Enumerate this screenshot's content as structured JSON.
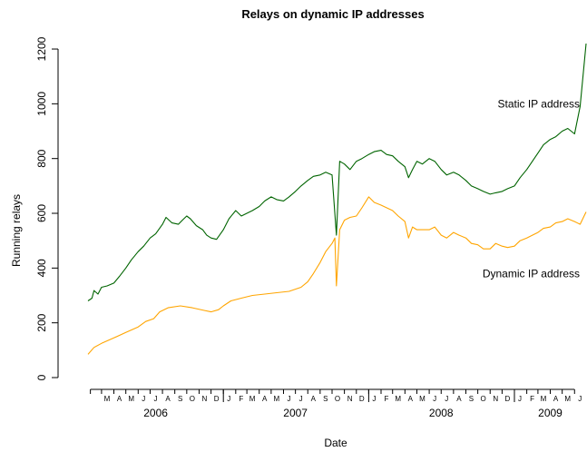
{
  "chart_data": {
    "type": "line",
    "title": "Relays on dynamic IP addresses",
    "xlabel": "Date",
    "ylabel": "Running relays",
    "y_ticks": [
      0,
      200,
      400,
      600,
      800,
      1000,
      1200
    ],
    "ylim": [
      0,
      1220
    ],
    "xlim": [
      "2006-01-26",
      "2009-06-30"
    ],
    "grid": false,
    "legend": "none",
    "month_ticks": [
      {
        "date": "2006-02-01",
        "label": ""
      },
      {
        "date": "2006-03-01",
        "label": "M"
      },
      {
        "date": "2006-04-01",
        "label": "A"
      },
      {
        "date": "2006-05-01",
        "label": "M"
      },
      {
        "date": "2006-06-01",
        "label": "J"
      },
      {
        "date": "2006-07-01",
        "label": "J"
      },
      {
        "date": "2006-08-01",
        "label": "A"
      },
      {
        "date": "2006-09-01",
        "label": "S"
      },
      {
        "date": "2006-10-01",
        "label": "O"
      },
      {
        "date": "2006-11-01",
        "label": "N"
      },
      {
        "date": "2006-12-01",
        "label": "D"
      },
      {
        "date": "2007-01-01",
        "label": "J"
      },
      {
        "date": "2007-02-01",
        "label": "F"
      },
      {
        "date": "2007-03-01",
        "label": "M"
      },
      {
        "date": "2007-04-01",
        "label": "A"
      },
      {
        "date": "2007-05-01",
        "label": "M"
      },
      {
        "date": "2007-06-01",
        "label": "J"
      },
      {
        "date": "2007-07-01",
        "label": "J"
      },
      {
        "date": "2007-08-01",
        "label": "A"
      },
      {
        "date": "2007-09-01",
        "label": "S"
      },
      {
        "date": "2007-10-01",
        "label": "O"
      },
      {
        "date": "2007-11-01",
        "label": "N"
      },
      {
        "date": "2007-12-01",
        "label": "D"
      },
      {
        "date": "2008-01-01",
        "label": "J"
      },
      {
        "date": "2008-02-01",
        "label": "F"
      },
      {
        "date": "2008-03-01",
        "label": "M"
      },
      {
        "date": "2008-04-01",
        "label": "A"
      },
      {
        "date": "2008-05-01",
        "label": "M"
      },
      {
        "date": "2008-06-01",
        "label": "J"
      },
      {
        "date": "2008-07-01",
        "label": "J"
      },
      {
        "date": "2008-08-01",
        "label": "A"
      },
      {
        "date": "2008-09-01",
        "label": "S"
      },
      {
        "date": "2008-10-01",
        "label": "O"
      },
      {
        "date": "2008-11-01",
        "label": "N"
      },
      {
        "date": "2008-12-01",
        "label": "D"
      },
      {
        "date": "2009-01-01",
        "label": "J"
      },
      {
        "date": "2009-02-01",
        "label": "F"
      },
      {
        "date": "2009-03-01",
        "label": "M"
      },
      {
        "date": "2009-04-01",
        "label": "A"
      },
      {
        "date": "2009-05-01",
        "label": "M"
      },
      {
        "date": "2009-06-01",
        "label": "J"
      }
    ],
    "year_ticks": [
      "2007-01-01",
      "2008-01-01",
      "2009-01-01"
    ],
    "year_labels": [
      {
        "label": "2006",
        "date": "2006-07-15"
      },
      {
        "label": "2007",
        "date": "2007-07-01"
      },
      {
        "label": "2008",
        "date": "2008-07-01"
      },
      {
        "label": "2009",
        "date": "2009-04-01"
      }
    ],
    "series": [
      {
        "name": "Static IP address",
        "color": "#006400",
        "points": [
          [
            "2006-01-26",
            280
          ],
          [
            "2006-02-05",
            290
          ],
          [
            "2006-02-10",
            318
          ],
          [
            "2006-02-20",
            305
          ],
          [
            "2006-03-01",
            330
          ],
          [
            "2006-03-15",
            335
          ],
          [
            "2006-04-01",
            345
          ],
          [
            "2006-04-15",
            370
          ],
          [
            "2006-05-01",
            400
          ],
          [
            "2006-05-15",
            430
          ],
          [
            "2006-06-01",
            460
          ],
          [
            "2006-06-15",
            480
          ],
          [
            "2006-07-01",
            510
          ],
          [
            "2006-07-15",
            525
          ],
          [
            "2006-08-01",
            560
          ],
          [
            "2006-08-10",
            585
          ],
          [
            "2006-08-25",
            565
          ],
          [
            "2006-09-10",
            560
          ],
          [
            "2006-09-20",
            575
          ],
          [
            "2006-10-01",
            590
          ],
          [
            "2006-10-10",
            580
          ],
          [
            "2006-10-25",
            555
          ],
          [
            "2006-11-10",
            540
          ],
          [
            "2006-11-20",
            520
          ],
          [
            "2006-12-01",
            510
          ],
          [
            "2006-12-15",
            505
          ],
          [
            "2007-01-01",
            540
          ],
          [
            "2007-01-15",
            580
          ],
          [
            "2007-02-01",
            610
          ],
          [
            "2007-02-15",
            590
          ],
          [
            "2007-03-01",
            600
          ],
          [
            "2007-03-15",
            610
          ],
          [
            "2007-04-01",
            625
          ],
          [
            "2007-04-15",
            645
          ],
          [
            "2007-05-01",
            660
          ],
          [
            "2007-05-15",
            650
          ],
          [
            "2007-06-01",
            645
          ],
          [
            "2007-06-15",
            660
          ],
          [
            "2007-07-01",
            680
          ],
          [
            "2007-07-15",
            700
          ],
          [
            "2007-08-01",
            720
          ],
          [
            "2007-08-15",
            735
          ],
          [
            "2007-09-01",
            740
          ],
          [
            "2007-09-15",
            750
          ],
          [
            "2007-10-01",
            740
          ],
          [
            "2007-10-12",
            520
          ],
          [
            "2007-10-20",
            790
          ],
          [
            "2007-11-01",
            780
          ],
          [
            "2007-11-15",
            760
          ],
          [
            "2007-12-01",
            790
          ],
          [
            "2007-12-15",
            800
          ],
          [
            "2008-01-01",
            815
          ],
          [
            "2008-01-15",
            825
          ],
          [
            "2008-02-01",
            830
          ],
          [
            "2008-02-15",
            815
          ],
          [
            "2008-03-01",
            810
          ],
          [
            "2008-03-15",
            790
          ],
          [
            "2008-04-01",
            770
          ],
          [
            "2008-04-10",
            730
          ],
          [
            "2008-04-20",
            760
          ],
          [
            "2008-05-01",
            790
          ],
          [
            "2008-05-15",
            780
          ],
          [
            "2008-06-01",
            800
          ],
          [
            "2008-06-15",
            790
          ],
          [
            "2008-07-01",
            760
          ],
          [
            "2008-07-15",
            740
          ],
          [
            "2008-08-01",
            750
          ],
          [
            "2008-08-15",
            740
          ],
          [
            "2008-09-01",
            720
          ],
          [
            "2008-09-15",
            700
          ],
          [
            "2008-10-01",
            690
          ],
          [
            "2008-10-15",
            680
          ],
          [
            "2008-11-01",
            670
          ],
          [
            "2008-11-15",
            675
          ],
          [
            "2008-12-01",
            680
          ],
          [
            "2008-12-15",
            690
          ],
          [
            "2009-01-01",
            700
          ],
          [
            "2009-01-15",
            730
          ],
          [
            "2009-02-01",
            760
          ],
          [
            "2009-02-15",
            790
          ],
          [
            "2009-03-01",
            820
          ],
          [
            "2009-03-15",
            850
          ],
          [
            "2009-04-01",
            870
          ],
          [
            "2009-04-15",
            880
          ],
          [
            "2009-05-01",
            900
          ],
          [
            "2009-05-15",
            910
          ],
          [
            "2009-06-01",
            890
          ],
          [
            "2009-06-15",
            990
          ],
          [
            "2009-06-30",
            1220
          ]
        ]
      },
      {
        "name": "Dynamic IP address",
        "color": "#FFA500",
        "points": [
          [
            "2006-01-26",
            85
          ],
          [
            "2006-02-10",
            110
          ],
          [
            "2006-03-01",
            125
          ],
          [
            "2006-04-01",
            145
          ],
          [
            "2006-05-01",
            165
          ],
          [
            "2006-06-01",
            185
          ],
          [
            "2006-06-20",
            205
          ],
          [
            "2006-07-10",
            215
          ],
          [
            "2006-07-25",
            240
          ],
          [
            "2006-08-15",
            255
          ],
          [
            "2006-09-15",
            262
          ],
          [
            "2006-10-15",
            255
          ],
          [
            "2006-11-15",
            245
          ],
          [
            "2006-12-01",
            240
          ],
          [
            "2006-12-20",
            248
          ],
          [
            "2007-01-01",
            262
          ],
          [
            "2007-01-20",
            280
          ],
          [
            "2007-02-15",
            290
          ],
          [
            "2007-03-15",
            300
          ],
          [
            "2007-04-15",
            305
          ],
          [
            "2007-05-15",
            310
          ],
          [
            "2007-06-15",
            315
          ],
          [
            "2007-07-15",
            330
          ],
          [
            "2007-08-01",
            350
          ],
          [
            "2007-08-15",
            380
          ],
          [
            "2007-09-01",
            420
          ],
          [
            "2007-09-15",
            460
          ],
          [
            "2007-10-01",
            490
          ],
          [
            "2007-10-08",
            510
          ],
          [
            "2007-10-12",
            335
          ],
          [
            "2007-10-20",
            540
          ],
          [
            "2007-11-01",
            575
          ],
          [
            "2007-11-15",
            585
          ],
          [
            "2007-12-01",
            590
          ],
          [
            "2007-12-15",
            620
          ],
          [
            "2008-01-01",
            660
          ],
          [
            "2008-01-15",
            640
          ],
          [
            "2008-02-01",
            630
          ],
          [
            "2008-03-01",
            610
          ],
          [
            "2008-03-15",
            590
          ],
          [
            "2008-04-01",
            570
          ],
          [
            "2008-04-10",
            510
          ],
          [
            "2008-04-20",
            550
          ],
          [
            "2008-05-01",
            540
          ],
          [
            "2008-06-01",
            540
          ],
          [
            "2008-06-15",
            550
          ],
          [
            "2008-07-01",
            520
          ],
          [
            "2008-07-15",
            510
          ],
          [
            "2008-08-01",
            530
          ],
          [
            "2008-08-15",
            520
          ],
          [
            "2008-09-01",
            510
          ],
          [
            "2008-09-15",
            490
          ],
          [
            "2008-10-01",
            485
          ],
          [
            "2008-10-15",
            470
          ],
          [
            "2008-11-01",
            470
          ],
          [
            "2008-11-15",
            490
          ],
          [
            "2008-12-01",
            480
          ],
          [
            "2008-12-15",
            475
          ],
          [
            "2009-01-01",
            480
          ],
          [
            "2009-01-15",
            500
          ],
          [
            "2009-02-01",
            510
          ],
          [
            "2009-02-15",
            520
          ],
          [
            "2009-03-01",
            530
          ],
          [
            "2009-03-15",
            545
          ],
          [
            "2009-04-01",
            550
          ],
          [
            "2009-04-15",
            565
          ],
          [
            "2009-05-01",
            570
          ],
          [
            "2009-05-15",
            580
          ],
          [
            "2009-06-01",
            570
          ],
          [
            "2009-06-15",
            560
          ],
          [
            "2009-06-30",
            605
          ]
        ]
      }
    ],
    "annotations": [
      {
        "text": "Static IP address",
        "date": "2009-06-30",
        "y": 1000,
        "anchor": "end"
      },
      {
        "text": "Dynamic IP address",
        "date": "2009-06-30",
        "y": 380,
        "anchor": "end"
      }
    ]
  }
}
